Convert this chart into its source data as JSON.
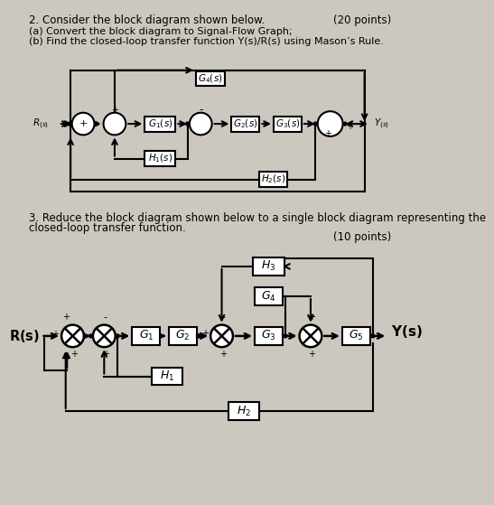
{
  "bg_color": "#ccc8c0",
  "title2": "2. Consider the block diagram shown below.",
  "points2": "(20 points)",
  "sub2a": "(a) Convert the block diagram to Signal-Flow Graph;",
  "sub2b": "(b) Find the closed-loop transfer function Y(s)/R(s) using Mason’s Rule.",
  "title3_line1": "3. Reduce the block diagram shown below to a single block diagram representing the",
  "title3_line2": "closed-loop transfer function.",
  "points3": "(10 points)"
}
